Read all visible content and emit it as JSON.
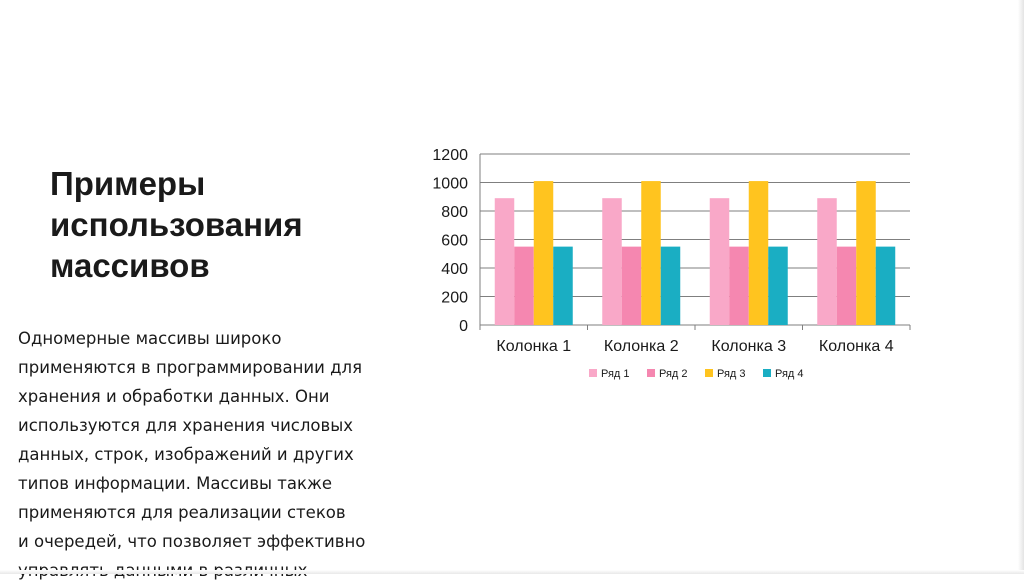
{
  "slide": {
    "title": "Примеры\nиспользования\nмассивов",
    "body": "Одномерные массивы широко\nприменяются в программировании для\nхранения и обработки данных. Они\nиспользуются для хранения числовых\nданных, строк, изображений и других\nтипов информации. Массивы также\nприменяются для реализации стеков\nи очередей, что позволяет эффективно\nуправлять данными в различных"
  },
  "colors": {
    "series_1": "#f9a8c8",
    "series_2": "#f587b0",
    "series_3": "#ffc41f",
    "series_4": "#1aaec3",
    "grid": "#7f7f7f",
    "text": "#1a1a1a"
  },
  "chart_data": {
    "type": "bar",
    "categories": [
      "Колонка 1",
      "Колонка 2",
      "Колонка 3",
      "Колонка 4"
    ],
    "series": [
      {
        "name": "Ряд 1",
        "values": [
          890,
          890,
          890,
          890
        ]
      },
      {
        "name": "Ряд 2",
        "values": [
          550,
          550,
          550,
          550
        ]
      },
      {
        "name": "Ряд 3",
        "values": [
          1010,
          1010,
          1010,
          1010
        ]
      },
      {
        "name": "Ряд 4",
        "values": [
          550,
          550,
          550,
          550
        ]
      }
    ],
    "yticks": [
      "0",
      "200",
      "400",
      "600",
      "800",
      "1000",
      "1200"
    ],
    "ylim": [
      0,
      1200
    ],
    "grid": true,
    "legend": "bottom"
  }
}
